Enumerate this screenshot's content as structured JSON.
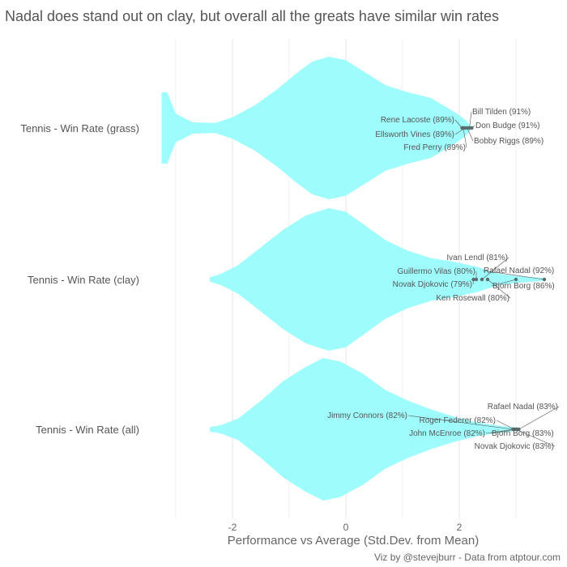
{
  "chart_data": {
    "type": "violin",
    "title": "Nadal does stand out on clay, but overall all the greats have similar win rates",
    "xlabel": "Performance vs Average (Std.Dev. from Mean)",
    "ylabel": "",
    "caption": "Viz by @stevejburr - Data from atptour.com",
    "xlim": [
      -3.2,
      3.9
    ],
    "x_ticks": [
      -2,
      0,
      2
    ],
    "grid": true,
    "fill_color": "#9ffcfc",
    "point_color": "#5a6b6b",
    "categories": [
      "Tennis - Win Rate (grass)",
      "Tennis - Win Rate (clay)",
      "Tennis - Win Rate (all)"
    ],
    "violins": [
      {
        "category": "Tennis - Win Rate (grass)",
        "min": -3.25,
        "max": 2.2,
        "profile": [
          [
            -3.25,
            0.5
          ],
          [
            -3.15,
            0.5
          ],
          [
            -3.0,
            0.2
          ],
          [
            -2.7,
            0.08
          ],
          [
            -2.3,
            0.07
          ],
          [
            -2.0,
            0.15
          ],
          [
            -1.6,
            0.32
          ],
          [
            -1.2,
            0.55
          ],
          [
            -0.9,
            0.75
          ],
          [
            -0.6,
            0.93
          ],
          [
            -0.3,
            1.0
          ],
          [
            0.0,
            0.95
          ],
          [
            0.3,
            0.8
          ],
          [
            0.7,
            0.6
          ],
          [
            1.1,
            0.5
          ],
          [
            1.5,
            0.42
          ],
          [
            1.8,
            0.28
          ],
          [
            2.0,
            0.18
          ],
          [
            2.1,
            0.12
          ],
          [
            2.2,
            0.03
          ]
        ],
        "points": [
          {
            "name": "Bill Tilden",
            "pct": "91%",
            "x": 2.18
          },
          {
            "name": "Don Budge",
            "pct": "91%",
            "x": 2.22
          },
          {
            "name": "Rene Lacoste",
            "pct": "89%",
            "x": 2.05
          },
          {
            "name": "Ellsworth Vines",
            "pct": "89%",
            "x": 2.1
          },
          {
            "name": "Bobby Riggs",
            "pct": "89%",
            "x": 2.14
          },
          {
            "name": "Fred Perry",
            "pct": "89%",
            "x": 2.07
          }
        ]
      },
      {
        "category": "Tennis - Win Rate (clay)",
        "min": -2.4,
        "max": 3.5,
        "profile": [
          [
            -2.4,
            0.03
          ],
          [
            -2.2,
            0.08
          ],
          [
            -1.9,
            0.2
          ],
          [
            -1.5,
            0.45
          ],
          [
            -1.1,
            0.7
          ],
          [
            -0.7,
            0.9
          ],
          [
            -0.3,
            1.0
          ],
          [
            0.0,
            0.95
          ],
          [
            0.3,
            0.78
          ],
          [
            0.7,
            0.55
          ],
          [
            1.1,
            0.4
          ],
          [
            1.5,
            0.3
          ],
          [
            1.9,
            0.25
          ],
          [
            2.3,
            0.18
          ],
          [
            2.7,
            0.08
          ],
          [
            3.0,
            0.05
          ],
          [
            3.5,
            0.02
          ]
        ],
        "points": [
          {
            "name": "Ivan Lendl",
            "pct": "81%",
            "x": 2.4
          },
          {
            "name": "Rafael Nadal",
            "pct": "92%",
            "x": 3.5
          },
          {
            "name": "Guillermo Vilas",
            "pct": "80%",
            "x": 2.3
          },
          {
            "name": "Novak Djokovic",
            "pct": "79%",
            "x": 2.25
          },
          {
            "name": "Bjorn Borg",
            "pct": "86%",
            "x": 3.0
          },
          {
            "name": "Ken Rosewall",
            "pct": "80%",
            "x": 2.5
          }
        ]
      },
      {
        "category": "Tennis - Win Rate (all)",
        "min": -2.4,
        "max": 3.05,
        "profile": [
          [
            -2.4,
            0.03
          ],
          [
            -2.2,
            0.06
          ],
          [
            -1.9,
            0.15
          ],
          [
            -1.5,
            0.4
          ],
          [
            -1.1,
            0.68
          ],
          [
            -0.7,
            0.88
          ],
          [
            -0.4,
            1.0
          ],
          [
            -0.1,
            0.95
          ],
          [
            0.3,
            0.78
          ],
          [
            0.7,
            0.55
          ],
          [
            1.1,
            0.4
          ],
          [
            1.5,
            0.28
          ],
          [
            1.9,
            0.18
          ],
          [
            2.3,
            0.1
          ],
          [
            2.7,
            0.05
          ],
          [
            3.05,
            0.02
          ]
        ],
        "points": [
          {
            "name": "Rafael Nadal",
            "pct": "83%",
            "x": 3.05
          },
          {
            "name": "Jimmy Connors",
            "pct": "82%",
            "x": 2.95
          },
          {
            "name": "Roger Federer",
            "pct": "82%",
            "x": 2.97
          },
          {
            "name": "John McEnroe",
            "pct": "82%",
            "x": 2.96
          },
          {
            "name": "Bjorn Borg",
            "pct": "83%",
            "x": 3.02
          },
          {
            "name": "Novak Djokovic",
            "pct": "83%",
            "x": 3.0
          }
        ]
      }
    ]
  }
}
